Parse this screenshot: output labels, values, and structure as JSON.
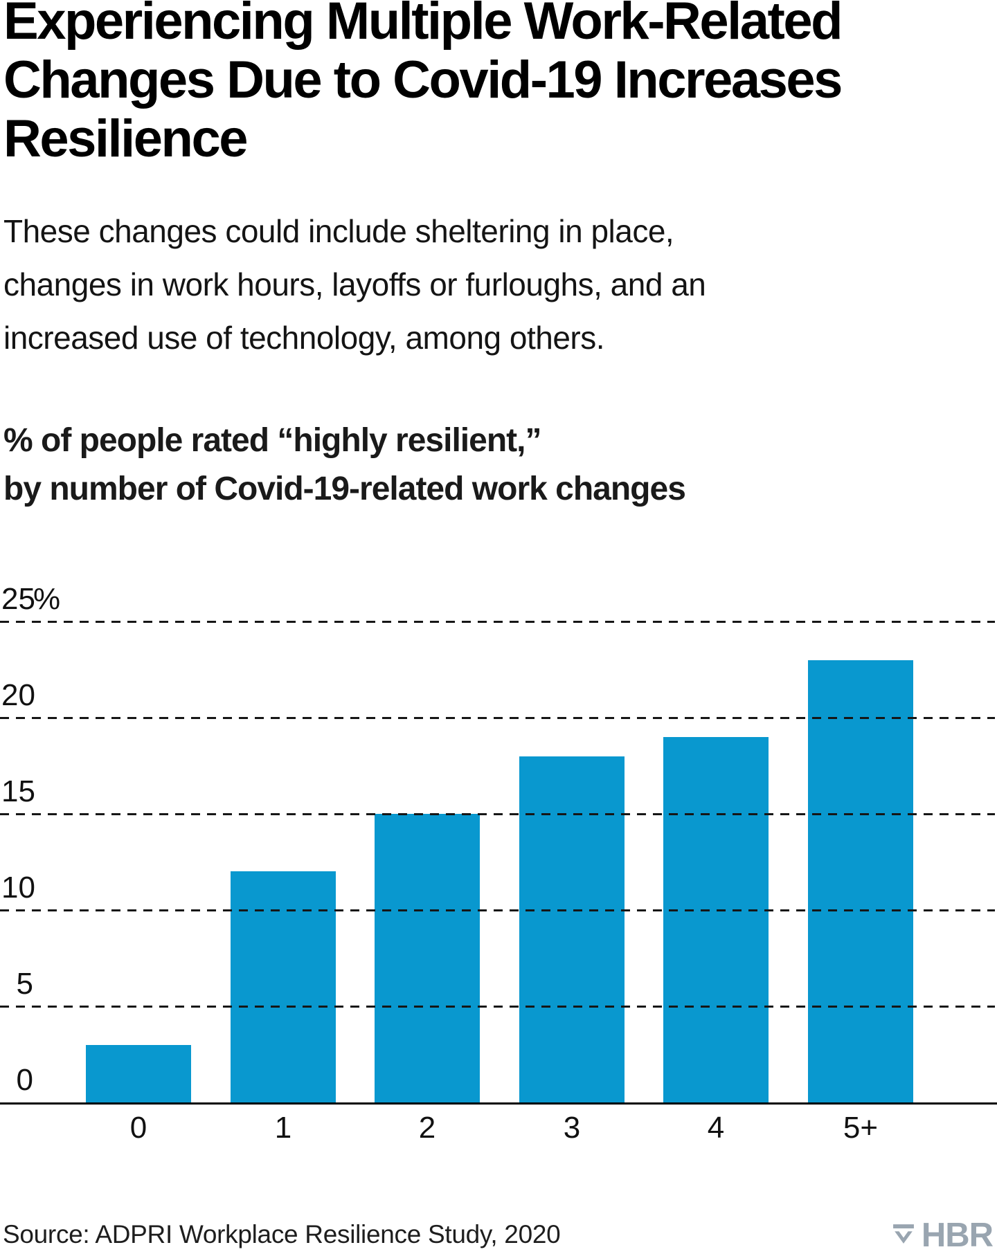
{
  "header": {
    "title": "Experiencing Multiple Work-Related Changes Due to Covid-19 Increases Resilience",
    "title_lines": [
      "Experiencing Multiple Work-Related",
      "Changes Due to Covid-19 Increases",
      "Resilience"
    ],
    "description": "These changes could include sheltering in place, changes in work hours, layoffs or furloughs, and an increased use of technology, among others.",
    "description_lines": [
      "These changes could include sheltering in place,",
      "changes in work hours, layoffs or furloughs, and an",
      "increased use of technology, among others."
    ]
  },
  "chart": {
    "heading_lines": [
      "% of people rated “highly resilient,”",
      "by number of Covid-19-related work changes"
    ]
  },
  "chart_data": {
    "type": "bar",
    "title": "% of people rated “highly resilient,” by number of Covid-19-related work changes",
    "categories": [
      "0",
      "1",
      "2",
      "3",
      "4",
      "5+"
    ],
    "values": [
      3,
      12,
      15,
      18,
      19,
      23
    ],
    "units": "percent",
    "xlabel": "",
    "ylabel": "",
    "ylim": [
      0,
      25
    ],
    "yticks": [
      0,
      5,
      10,
      15,
      20,
      25
    ],
    "ytick_labels": [
      "0",
      "5",
      "10",
      "15",
      "20",
      "25%"
    ],
    "grid": "horizontal-dashed",
    "legend": "none",
    "bar_color": "#0998cf",
    "axis_color": "#000000",
    "gridline_color": "#161616"
  },
  "footer": {
    "source": "Source: ADPRI Workplace Resilience Study, 2020",
    "brand": "HBR",
    "brand_color": "#99a5b0"
  }
}
